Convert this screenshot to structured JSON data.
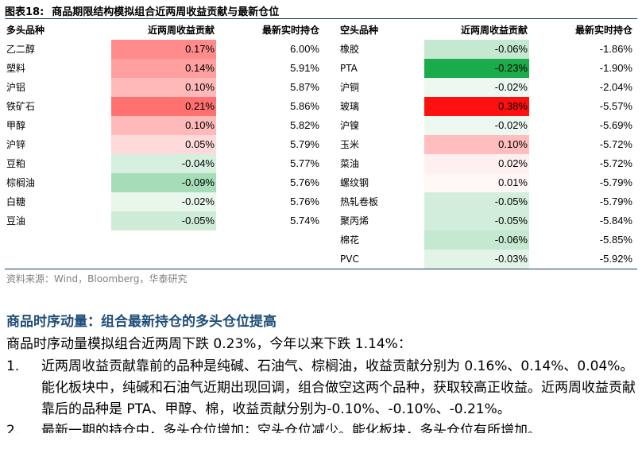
{
  "figure": {
    "label": "图表18:",
    "title": "商品期限结构模拟组合近两周收益贡献与最新仓位"
  },
  "headers": {
    "long_name": "多头品种",
    "long_ret": "近两周收益贡献",
    "long_pos": "最新实时持仓",
    "short_name": "空头品种",
    "short_ret": "近两周收益贡献",
    "short_pos": "最新实时持仓"
  },
  "long_rows": [
    {
      "name": "乙二醇",
      "ret": "0.17%",
      "pos": "6.00%",
      "bg": "#ff8b8b"
    },
    {
      "name": "塑料",
      "ret": "0.14%",
      "pos": "5.91%",
      "bg": "#ff9f9f"
    },
    {
      "name": "沪铝",
      "ret": "0.10%",
      "pos": "5.87%",
      "bg": "#ffb9b9"
    },
    {
      "name": "铁矿石",
      "ret": "0.21%",
      "pos": "5.86%",
      "bg": "#ff7171"
    },
    {
      "name": "甲醇",
      "ret": "0.10%",
      "pos": "5.82%",
      "bg": "#ffb9b9"
    },
    {
      "name": "沪锌",
      "ret": "0.05%",
      "pos": "5.79%",
      "bg": "#ffdada"
    },
    {
      "name": "豆粕",
      "ret": "-0.04%",
      "pos": "5.77%",
      "bg": "#d6efdf"
    },
    {
      "name": "棕榈油",
      "ret": "-0.09%",
      "pos": "5.76%",
      "bg": "#a6dcb8"
    },
    {
      "name": "白糖",
      "ret": "-0.02%",
      "pos": "5.76%",
      "bg": "#e8f6ec"
    },
    {
      "name": "豆油",
      "ret": "-0.05%",
      "pos": "5.74%",
      "bg": "#cdebd7"
    }
  ],
  "short_rows": [
    {
      "name": "橡胶",
      "ret": "-0.06%",
      "pos": "-1.86%",
      "bg": "#c5e8d0"
    },
    {
      "name": "PTA",
      "ret": "-0.23%",
      "pos": "-1.90%",
      "bg": "#1aab4a"
    },
    {
      "name": "沪铜",
      "ret": "-0.02%",
      "pos": "-2.04%",
      "bg": "#edf8f1"
    },
    {
      "name": "玻璃",
      "ret": "0.38%",
      "pos": "-5.57%",
      "bg": "#ff1010"
    },
    {
      "name": "沪镍",
      "ret": "-0.02%",
      "pos": "-5.69%",
      "bg": "#edf8f1"
    },
    {
      "name": "玉米",
      "ret": "0.10%",
      "pos": "-5.72%",
      "bg": "#ffbdbd"
    },
    {
      "name": "菜油",
      "ret": "0.02%",
      "pos": "-5.72%",
      "bg": "#fff0f0"
    },
    {
      "name": "螺纹钢",
      "ret": "0.01%",
      "pos": "-5.79%",
      "bg": "#fff6f6"
    },
    {
      "name": "热轧卷板",
      "ret": "-0.05%",
      "pos": "-5.79%",
      "bg": "#d2eddb"
    },
    {
      "name": "聚丙烯",
      "ret": "-0.05%",
      "pos": "-5.84%",
      "bg": "#d2eddb"
    },
    {
      "name": "棉花",
      "ret": "-0.06%",
      "pos": "-5.85%",
      "bg": "#c5e8d0"
    },
    {
      "name": "PVC",
      "ret": "-0.03%",
      "pos": "-5.92%",
      "bg": "#e2f4e8"
    }
  ],
  "source": "资料来源：Wind，Bloomberg，华泰研究",
  "section_title": "商品时序动量：组合最新持仓的多头仓位提高",
  "intro": "商品时序动量模拟组合近两周下跌 0.23%，今年以来下跌 1.14%：",
  "list": [
    {
      "num": "1.",
      "text": "近两周收益贡献靠前的品种是纯碱、石油气、棕榈油，收益贡献分别为 0.16%、0.14%、0.04%。能化板块中，纯碱和石油气近期出现回调，组合做空这两个品种，获取较高正收益。近两周收益贡献靠后的品种是 PTA、甲醇、棉，收益贡献分别为-0.10%、-0.10%、-0.21%。"
    },
    {
      "num": "2.",
      "text": "最新一期的持仓中，多头仓位增加；空头仓位减少。能化板块，多头仓位有所增加。"
    }
  ]
}
